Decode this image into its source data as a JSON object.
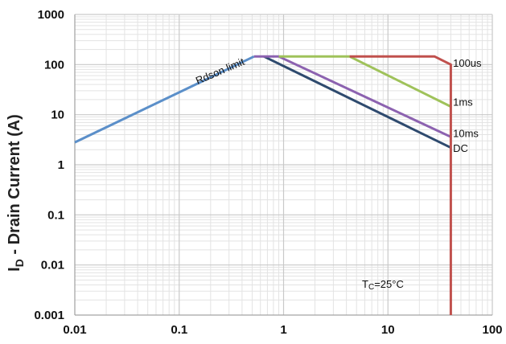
{
  "chart_data": {
    "type": "line",
    "title": "",
    "xlabel": "",
    "ylabel": {
      "main": "I",
      "sub": "D",
      "rest": " - Drain Current (A)"
    },
    "x_scale": "log",
    "y_scale": "log",
    "xlim": [
      0.01,
      100
    ],
    "ylim": [
      0.001,
      1000
    ],
    "x_ticks": [
      "0.01",
      "0.1",
      "1",
      "10",
      "100"
    ],
    "y_ticks": [
      "1000",
      "100",
      "10",
      "1",
      "0.1",
      "0.01",
      "0.001"
    ],
    "grid": true,
    "series": [
      {
        "name": "Rdson limit",
        "color": "#5b8fc9",
        "points": [
          [
            0.01,
            2.8
          ],
          [
            0.52,
            145
          ]
        ]
      },
      {
        "name": "DC",
        "color": "#2e4a6e",
        "points": [
          [
            0.65,
            145
          ],
          [
            40,
            2.2
          ]
        ]
      },
      {
        "name": "10ms",
        "color": "#8c62b0",
        "points": [
          [
            0.52,
            145
          ],
          [
            0.9,
            145
          ],
          [
            40,
            3.6
          ]
        ]
      },
      {
        "name": "1ms",
        "color": "#9fc25a",
        "points": [
          [
            0.9,
            145
          ],
          [
            4.3,
            145
          ],
          [
            40,
            14.5
          ]
        ]
      },
      {
        "name": "100us",
        "color": "#c0504d",
        "points": [
          [
            4.3,
            145
          ],
          [
            28,
            145
          ],
          [
            40,
            100
          ],
          [
            40,
            0.001
          ]
        ]
      }
    ],
    "annotations": [
      {
        "text": "Rdson limit",
        "x": 0.15,
        "y": 40,
        "rotate": -23
      },
      {
        "text": "100us",
        "x": 42,
        "y": 90
      },
      {
        "text": "1ms",
        "x": 42,
        "y": 15
      },
      {
        "text": "10ms",
        "x": 42,
        "y": 3.6
      },
      {
        "text": "DC",
        "x": 42,
        "y": 1.8
      }
    ],
    "condition": {
      "prefix": "T",
      "sub": "C",
      "value": "=25",
      "unit": "°C"
    }
  }
}
